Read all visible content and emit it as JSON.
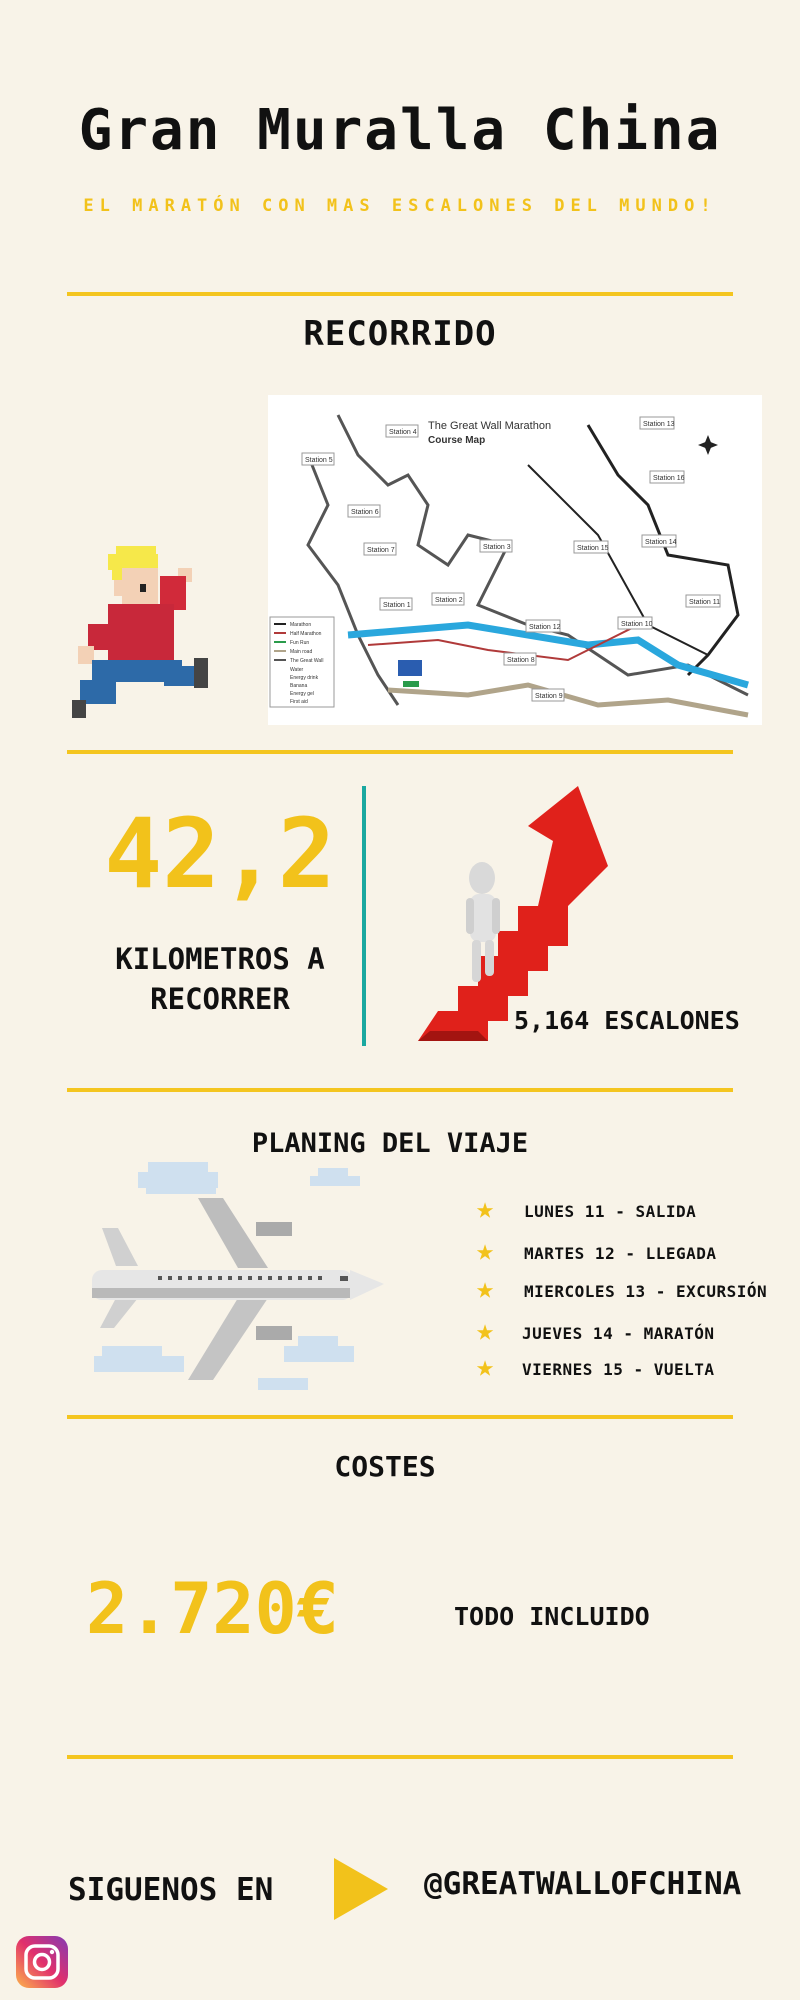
{
  "header": {
    "title": "Gran Muralla China",
    "subtitle": "EL MARATÓN CON MAS ESCALONES DEL MUNDO!"
  },
  "route": {
    "heading": "RECORRIDO",
    "map": {
      "title": "The Great Wall Marathon",
      "subtitle": "Course Map",
      "stations": [
        "Station 1",
        "Station 2",
        "Station 3",
        "Station 4",
        "Station 5",
        "Station 6",
        "Station 7",
        "Station 8",
        "Station 9",
        "Station 10",
        "Station 11",
        "Station 12",
        "Station 13",
        "Station 14",
        "Station 15",
        "Station 16"
      ],
      "legend": [
        "Marathon",
        "Half Marathon",
        "Fun Run",
        "Main road",
        "The Great Wall",
        "Water",
        "Energy drink",
        "Banana",
        "Energy gel",
        "First aid"
      ]
    }
  },
  "stats": {
    "distance_value": "42,2",
    "distance_label_1": "KILOMETROS A",
    "distance_label_2": "RECORRER",
    "steps_label": "5,164 ESCALONES"
  },
  "planning": {
    "heading": "PLANING DEL VIAJE",
    "items": [
      "LUNES 11 - SALIDA",
      "MARTES 12 - LLEGADA",
      "MIERCOLES 13 - EXCURSIÓN",
      "JUEVES 14 - MARATÓN",
      "VIERNES 15 - VUELTA"
    ]
  },
  "costs": {
    "heading": "COSTES",
    "price": "2.720€",
    "note": "TODO INCLUIDO"
  },
  "social": {
    "follow_label": "SIGUENOS EN",
    "handle": "@GREATWALLOFCHINA"
  },
  "colors": {
    "background": "#f8f3e8",
    "accent": "#f4c51f",
    "divider_teal": "#1aa8a0",
    "stairs_red": "#e0211b"
  },
  "icons": [
    "runner-icon",
    "star-icon",
    "play-icon",
    "instagram-icon",
    "airplane-icon",
    "compass-icon"
  ]
}
